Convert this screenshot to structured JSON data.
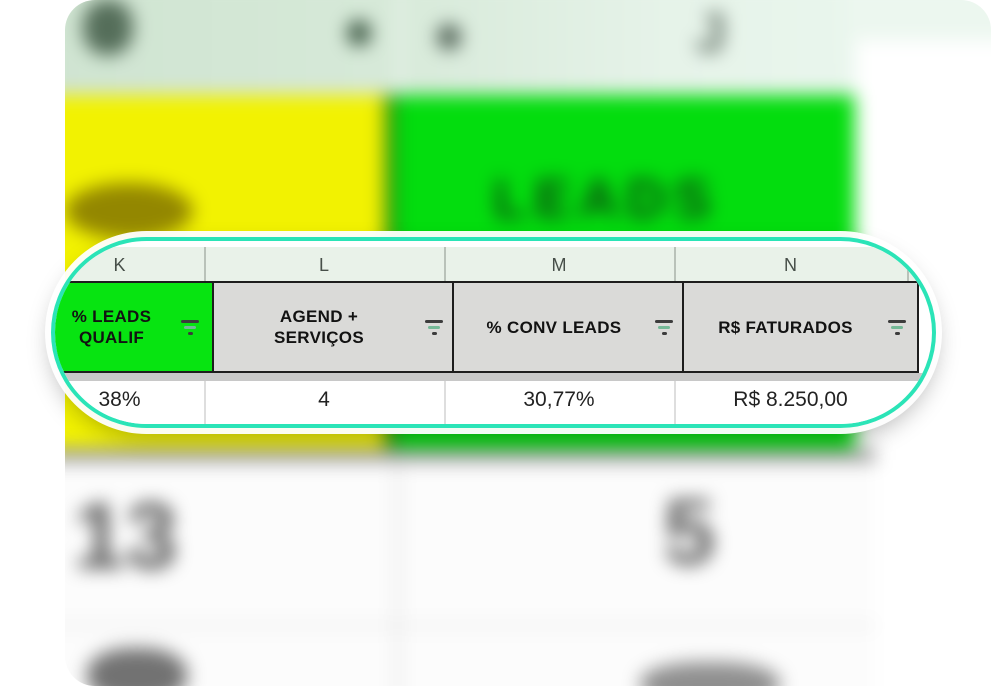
{
  "app": {
    "description": "Blurred spreadsheet screenshot with a magnified highlight pill over columns K to N"
  },
  "colors": {
    "accent_teal": "#2be4b7",
    "header_green": "#07e411",
    "header_gray": "#dadad8",
    "band_yellow": "#f2f201",
    "band_green": "#03dd0e",
    "letters_row_bg": "#e9f2e9"
  },
  "columns": [
    {
      "letter": "K",
      "header_line1": "% LEADS",
      "header_line2": "QUALIF",
      "value": "38%"
    },
    {
      "letter": "L",
      "header_line1": "AGEND +",
      "header_line2": "SERVIÇOS",
      "value": "4"
    },
    {
      "letter": "M",
      "header_line1": "% CONV LEADS",
      "value": "30,77%"
    },
    {
      "letter": "N",
      "header_line1": "R$ FATURADOS",
      "value": "R$ 8.250,00"
    }
  ],
  "background": {
    "big_label": "LEADS",
    "left_number": "13",
    "right_number": "5",
    "corner_letter": "J"
  }
}
